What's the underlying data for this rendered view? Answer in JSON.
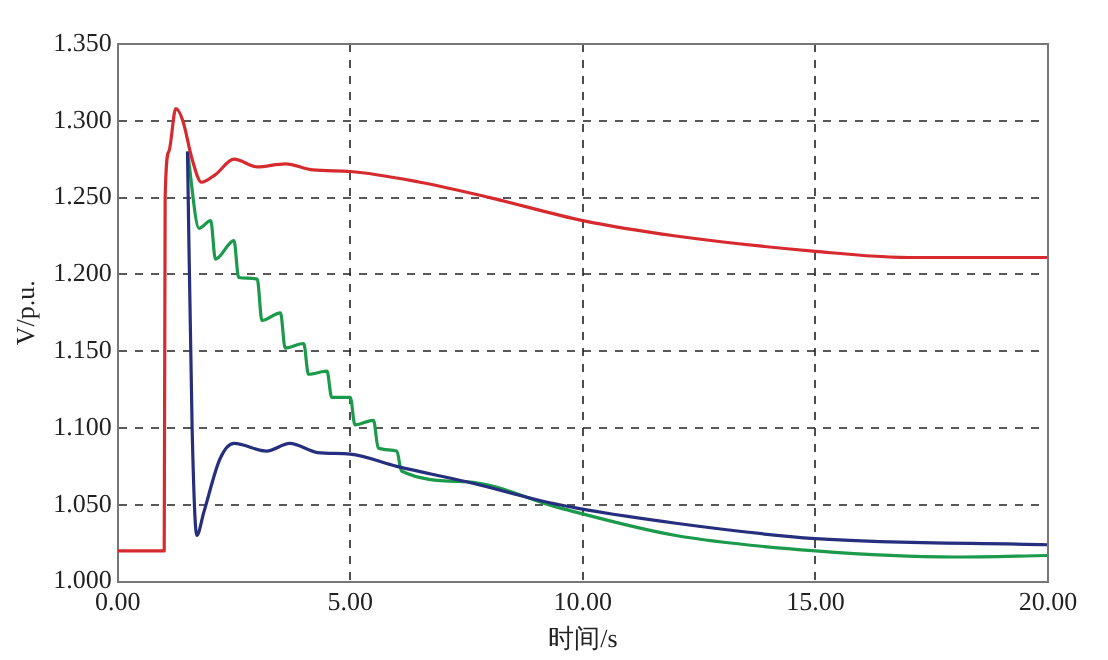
{
  "chart_data": {
    "type": "line",
    "xlabel": "时间/s",
    "ylabel": "V/p.u.",
    "xlim": [
      0,
      20
    ],
    "xticks": [
      {
        "value": 0,
        "label": "0.00"
      },
      {
        "value": 5,
        "label": "5.00"
      },
      {
        "value": 10,
        "label": "10.00"
      },
      {
        "value": 15,
        "label": "15.00"
      },
      {
        "value": 20,
        "label": "20.00"
      }
    ],
    "ylim": [
      1.0,
      1.35
    ],
    "yticks": [
      {
        "value": 1.0,
        "label": "1.000"
      },
      {
        "value": 1.05,
        "label": "1.050"
      },
      {
        "value": 1.1,
        "label": "1.100"
      },
      {
        "value": 1.15,
        "label": "1.150"
      },
      {
        "value": 1.2,
        "label": "1.200"
      },
      {
        "value": 1.25,
        "label": "1.250"
      },
      {
        "value": 1.3,
        "label": "1.300"
      },
      {
        "value": 1.35,
        "label": "1.350"
      }
    ],
    "grid": true,
    "legend": false,
    "marker": "none",
    "line_style": "solid",
    "series": [
      {
        "color": "#d62a2e",
        "x": [
          0,
          1.0,
          1.02,
          1.1,
          1.25,
          1.4,
          1.6,
          1.8,
          2.1,
          2.5,
          3.0,
          3.6,
          4.2,
          5.0,
          6.5,
          8.0,
          10.0,
          12.0,
          15.0,
          17.0,
          20.0
        ],
        "values": [
          1.02,
          1.02,
          1.25,
          1.28,
          1.308,
          1.3,
          1.275,
          1.26,
          1.265,
          1.275,
          1.27,
          1.272,
          1.268,
          1.267,
          1.26,
          1.25,
          1.235,
          1.225,
          1.215,
          1.211,
          1.211
        ]
      },
      {
        "color": "#262f7e",
        "x": [
          1.5,
          1.6,
          1.7,
          1.85,
          2.2,
          2.5,
          3.2,
          3.7,
          4.3,
          5.0,
          6.0,
          7.5,
          9.5,
          12.0,
          15.0,
          20.0
        ],
        "values": [
          1.28,
          1.1,
          1.03,
          1.045,
          1.08,
          1.09,
          1.085,
          1.09,
          1.084,
          1.083,
          1.075,
          1.065,
          1.05,
          1.038,
          1.028,
          1.024
        ]
      },
      {
        "color": "#1a9a4a",
        "x": [
          1.5,
          1.75,
          2.0,
          2.1,
          2.5,
          2.6,
          3.0,
          3.1,
          3.5,
          3.6,
          4.0,
          4.1,
          4.5,
          4.6,
          5.0,
          5.1,
          5.5,
          5.6,
          6.0,
          6.1,
          7.5,
          9.5,
          12.0,
          15.0,
          18.0,
          20.0
        ],
        "values": [
          1.28,
          1.23,
          1.235,
          1.21,
          1.222,
          1.198,
          1.197,
          1.17,
          1.175,
          1.152,
          1.155,
          1.135,
          1.137,
          1.12,
          1.12,
          1.102,
          1.105,
          1.087,
          1.085,
          1.072,
          1.065,
          1.048,
          1.03,
          1.02,
          1.016,
          1.017
        ]
      }
    ]
  }
}
